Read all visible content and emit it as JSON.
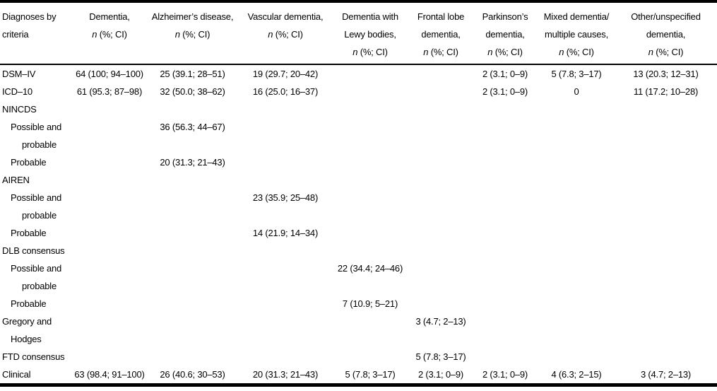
{
  "table": {
    "name": "diagnoses-by-criteria-table",
    "ci_label": "n (%; CI)",
    "header": {
      "columns": [
        {
          "id": "criteria",
          "lines": [
            "Diagnoses by",
            "criteria"
          ]
        },
        {
          "id": "dementia",
          "lines": [
            "Dementia,",
            "n (%; CI)"
          ]
        },
        {
          "id": "alzheimers",
          "lines": [
            "Alzheimer’s disease,",
            "n (%; CI)"
          ]
        },
        {
          "id": "vascular",
          "lines": [
            "Vascular dementia,",
            "n (%; CI)"
          ]
        },
        {
          "id": "lewy",
          "lines": [
            "Dementia with",
            "Lewy bodies,",
            "n (%; CI)"
          ]
        },
        {
          "id": "frontal",
          "lines": [
            "Frontal lobe",
            "dementia,",
            "n (%; CI)"
          ]
        },
        {
          "id": "parkinsons",
          "lines": [
            "Parkinson’s",
            "dementia,",
            "n (%; CI)"
          ]
        },
        {
          "id": "mixed",
          "lines": [
            "Mixed dementia/",
            "multiple causes,",
            "n (%; CI)"
          ]
        },
        {
          "id": "other",
          "lines": [
            "Other/unspecified",
            "dementia,",
            "n (%; CI)"
          ]
        }
      ]
    },
    "rows": [
      {
        "label": "DSM–IV",
        "indent": 0,
        "cells": [
          "64 (100; 94–100)",
          "25 (39.1; 28–51)",
          "19 (29.7; 20–42)",
          "",
          "",
          "2 (3.1; 0–9)",
          "5 (7.8; 3–17)",
          "13 (20.3; 12–31)"
        ]
      },
      {
        "label": "ICD–10",
        "indent": 0,
        "cells": [
          "61 (95.3; 87–98)",
          "32 (50.0; 38–62)",
          "16 (25.0; 16–37)",
          "",
          "",
          "2 (3.1; 0–9)",
          "0",
          "11 (17.2; 10–28)"
        ]
      },
      {
        "label": "NINCDS",
        "indent": 0,
        "cells": [
          "",
          "",
          "",
          "",
          "",
          "",
          "",
          ""
        ]
      },
      {
        "label": "Possible and",
        "indent": 1,
        "cells": [
          "",
          "36 (56.3; 44–67)",
          "",
          "",
          "",
          "",
          "",
          ""
        ]
      },
      {
        "label": "probable",
        "indent": 2,
        "cells": [
          "",
          "",
          "",
          "",
          "",
          "",
          "",
          ""
        ]
      },
      {
        "label": "Probable",
        "indent": 1,
        "cells": [
          "",
          "20 (31.3; 21–43)",
          "",
          "",
          "",
          "",
          "",
          ""
        ]
      },
      {
        "label": "AIREN",
        "indent": 0,
        "cells": [
          "",
          "",
          "",
          "",
          "",
          "",
          "",
          ""
        ]
      },
      {
        "label": "Possible and",
        "indent": 1,
        "cells": [
          "",
          "",
          "23 (35.9; 25–48)",
          "",
          "",
          "",
          "",
          ""
        ]
      },
      {
        "label": "probable",
        "indent": 2,
        "cells": [
          "",
          "",
          "",
          "",
          "",
          "",
          "",
          ""
        ]
      },
      {
        "label": "Probable",
        "indent": 1,
        "cells": [
          "",
          "",
          "14 (21.9; 14–34)",
          "",
          "",
          "",
          "",
          ""
        ]
      },
      {
        "label": "DLB consensus",
        "indent": 0,
        "cells": [
          "",
          "",
          "",
          "",
          "",
          "",
          "",
          ""
        ]
      },
      {
        "label": "Possible and",
        "indent": 1,
        "cells": [
          "",
          "",
          "",
          "22 (34.4; 24–46)",
          "",
          "",
          "",
          ""
        ]
      },
      {
        "label": "probable",
        "indent": 2,
        "cells": [
          "",
          "",
          "",
          "",
          "",
          "",
          "",
          ""
        ]
      },
      {
        "label": "Probable",
        "indent": 1,
        "cells": [
          "",
          "",
          "",
          "7 (10.9; 5–21)",
          "",
          "",
          "",
          ""
        ]
      },
      {
        "label": "Gregory and",
        "indent": 0,
        "cells": [
          "",
          "",
          "",
          "",
          "3 (4.7; 2–13)",
          "",
          "",
          ""
        ]
      },
      {
        "label": "Hodges",
        "indent": 1,
        "cells": [
          "",
          "",
          "",
          "",
          "",
          "",
          "",
          ""
        ]
      },
      {
        "label": "FTD consensus",
        "indent": 0,
        "cells": [
          "",
          "",
          "",
          "",
          "5 (7.8; 3–17)",
          "",
          "",
          ""
        ]
      },
      {
        "label": "Clinical",
        "indent": 0,
        "cells": [
          "63 (98.4; 91–100)",
          "26 (40.6; 30–53)",
          "20 (31.3; 21–43)",
          "5 (7.8; 3–17)",
          "2 (3.1; 0–9)",
          "2 (3.1; 0–9)",
          "4 (6.3; 2–15)",
          "3 (4.7; 2–13)"
        ]
      }
    ]
  }
}
